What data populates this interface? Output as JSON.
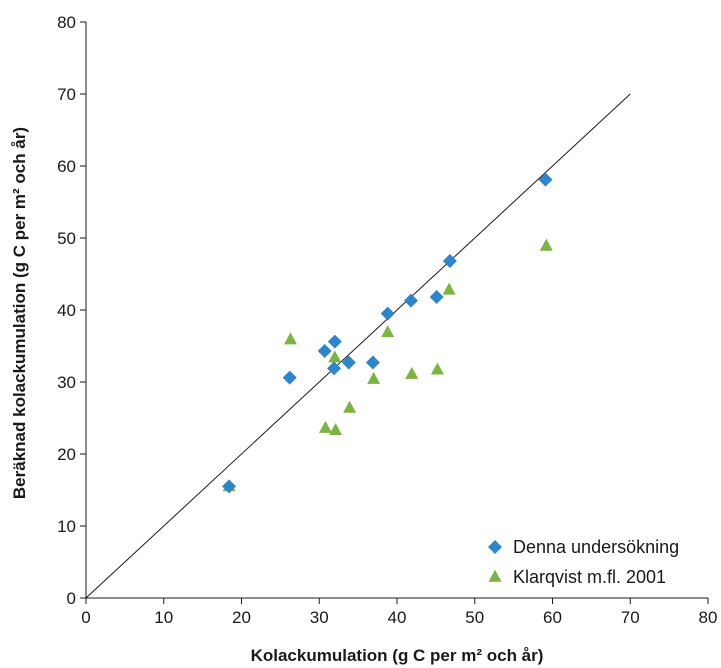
{
  "chart_data": {
    "type": "scatter",
    "xlabel": "Kolackumulation (g C per m² och år)",
    "ylabel": "Beräknad kolackumulation (g C per m² och år)",
    "xlim": [
      0,
      80
    ],
    "ylim": [
      0,
      80
    ],
    "xticks": [
      "0",
      "10",
      "20",
      "30",
      "40",
      "50",
      "60",
      "70",
      "80"
    ],
    "yticks": [
      "0",
      "10",
      "20",
      "30",
      "40",
      "50",
      "60",
      "70",
      "80"
    ],
    "grid": false,
    "legend_position": "bottom-right",
    "reference_line": {
      "x": [
        0,
        70
      ],
      "y": [
        0,
        70
      ]
    },
    "series": [
      {
        "name": "Denna undersökning",
        "marker": "diamond",
        "color": "#2e86c8",
        "points": [
          [
            18.4,
            15.5
          ],
          [
            26.2,
            30.6
          ],
          [
            30.7,
            34.3
          ],
          [
            32.0,
            35.6
          ],
          [
            31.9,
            31.9
          ],
          [
            33.8,
            32.7
          ],
          [
            36.9,
            32.7
          ],
          [
            38.8,
            39.5
          ],
          [
            41.8,
            41.3
          ],
          [
            45.1,
            41.8
          ],
          [
            46.8,
            46.8
          ],
          [
            59.1,
            58.1
          ]
        ]
      },
      {
        "name": "Klarqvist m.fl. 2001",
        "marker": "triangle",
        "color": "#7cb342",
        "points": [
          [
            18.4,
            15.5
          ],
          [
            26.3,
            35.9
          ],
          [
            30.8,
            23.6
          ],
          [
            32.1,
            23.3
          ],
          [
            32.0,
            33.4
          ],
          [
            33.9,
            26.4
          ],
          [
            37.0,
            30.4
          ],
          [
            38.8,
            36.9
          ],
          [
            41.9,
            31.1
          ],
          [
            45.2,
            31.7
          ],
          [
            46.7,
            42.8
          ],
          [
            59.2,
            48.9
          ]
        ]
      }
    ]
  }
}
